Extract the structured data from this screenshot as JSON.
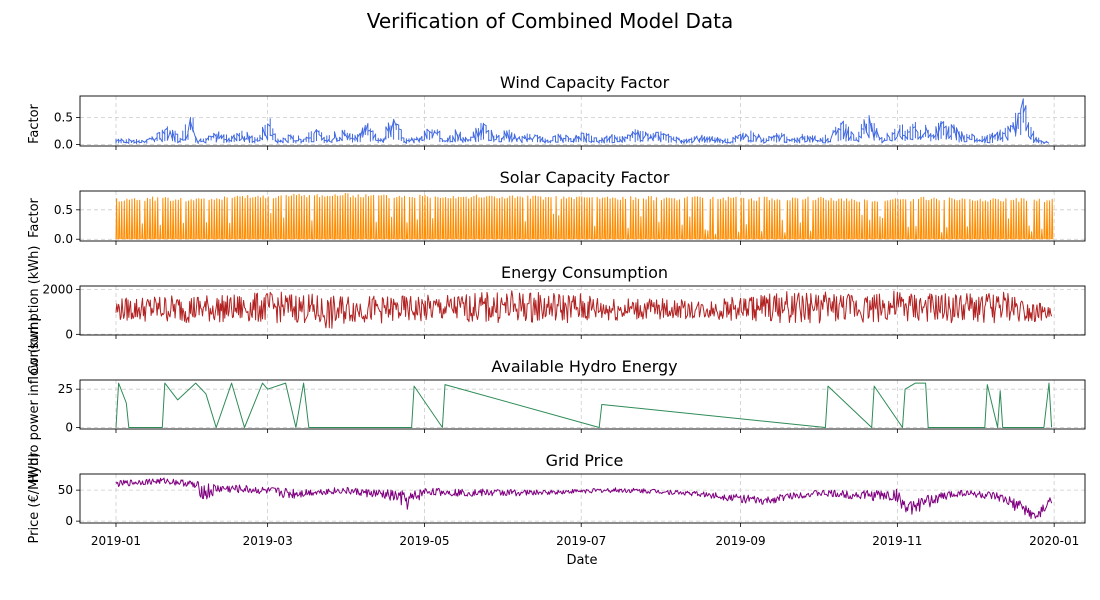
{
  "figure": {
    "title": "Verification of Combined Model Data"
  },
  "chart_data": [
    {
      "type": "line",
      "title": "Wind Capacity Factor",
      "ylabel": "Factor",
      "xlabel": "",
      "color": "#4169e1",
      "ylim": [
        -0.03,
        0.9
      ],
      "yticks": [
        0.0,
        0.5
      ],
      "ytick_labels": [
        "0.0",
        "0.5"
      ],
      "grid": true,
      "x": [
        "2019-01-01",
        "2019-01-06",
        "2019-01-11",
        "2019-01-16",
        "2019-01-21",
        "2019-01-26",
        "2019-01-31",
        "2019-02-02",
        "2019-02-05",
        "2019-02-10",
        "2019-02-15",
        "2019-02-20",
        "2019-02-25",
        "2019-03-02",
        "2019-03-05",
        "2019-03-10",
        "2019-03-15",
        "2019-03-20",
        "2019-03-25",
        "2019-03-30",
        "2019-04-04",
        "2019-04-09",
        "2019-04-14",
        "2019-04-19",
        "2019-04-24",
        "2019-04-29",
        "2019-05-04",
        "2019-05-09",
        "2019-05-14",
        "2019-05-19",
        "2019-05-24",
        "2019-05-29",
        "2019-06-03",
        "2019-06-08",
        "2019-06-13",
        "2019-06-18",
        "2019-06-23",
        "2019-06-28",
        "2019-07-03",
        "2019-07-08",
        "2019-07-13",
        "2019-07-18",
        "2019-07-23",
        "2019-07-28",
        "2019-08-02",
        "2019-08-07",
        "2019-08-12",
        "2019-08-17",
        "2019-08-22",
        "2019-08-27",
        "2019-09-01",
        "2019-09-06",
        "2019-09-11",
        "2019-09-16",
        "2019-09-21",
        "2019-09-26",
        "2019-10-01",
        "2019-10-06",
        "2019-10-11",
        "2019-10-16",
        "2019-10-21",
        "2019-10-26",
        "2019-10-31",
        "2019-11-05",
        "2019-11-10",
        "2019-11-15",
        "2019-11-20",
        "2019-11-25",
        "2019-11-30",
        "2019-12-05",
        "2019-12-10",
        "2019-12-15",
        "2019-12-20",
        "2019-12-22",
        "2019-12-25",
        "2019-12-30"
      ],
      "values": [
        0.1,
        0.12,
        0.08,
        0.15,
        0.35,
        0.2,
        0.6,
        0.1,
        0.12,
        0.25,
        0.15,
        0.3,
        0.1,
        0.55,
        0.1,
        0.2,
        0.15,
        0.3,
        0.15,
        0.35,
        0.2,
        0.4,
        0.1,
        0.55,
        0.1,
        0.15,
        0.35,
        0.2,
        0.3,
        0.1,
        0.5,
        0.2,
        0.3,
        0.15,
        0.25,
        0.1,
        0.2,
        0.15,
        0.25,
        0.1,
        0.2,
        0.15,
        0.3,
        0.2,
        0.25,
        0.15,
        0.1,
        0.2,
        0.15,
        0.1,
        0.2,
        0.3,
        0.1,
        0.25,
        0.1,
        0.2,
        0.15,
        0.2,
        0.45,
        0.2,
        0.6,
        0.15,
        0.35,
        0.4,
        0.45,
        0.3,
        0.55,
        0.3,
        0.2,
        0.15,
        0.25,
        0.4,
        0.85,
        0.6,
        0.15,
        0.05
      ]
    },
    {
      "type": "line",
      "title": "Solar Capacity Factor",
      "ylabel": "Factor",
      "xlabel": "",
      "color": "#ff8c00",
      "ylim": [
        -0.03,
        0.82
      ],
      "yticks": [
        0.0,
        0.5
      ],
      "ytick_labels": [
        "0.0",
        "0.5"
      ],
      "grid": true,
      "x": [
        "2019-01-01",
        "2019-01-15",
        "2019-02-01",
        "2019-02-15",
        "2019-03-01",
        "2019-03-15",
        "2019-04-01",
        "2019-04-15",
        "2019-05-01",
        "2019-05-15",
        "2019-06-01",
        "2019-06-15",
        "2019-07-01",
        "2019-07-15",
        "2019-08-01",
        "2019-08-15",
        "2019-09-01",
        "2019-09-15",
        "2019-10-01",
        "2019-10-15",
        "2019-11-01",
        "2019-11-15",
        "2019-12-01",
        "2019-12-15",
        "2019-12-31"
      ],
      "values": [
        0.7,
        0.72,
        0.7,
        0.74,
        0.76,
        0.78,
        0.78,
        0.76,
        0.77,
        0.76,
        0.75,
        0.74,
        0.74,
        0.73,
        0.73,
        0.72,
        0.72,
        0.72,
        0.72,
        0.7,
        0.7,
        0.72,
        0.7,
        0.7,
        0.68
      ]
    },
    {
      "type": "line",
      "title": "Energy Consumption",
      "ylabel": "Consumption (kWh)",
      "xlabel": "",
      "color": "#b22222",
      "ylim": [
        -30,
        2150
      ],
      "yticks": [
        0,
        2000
      ],
      "ytick_labels": [
        "0",
        "2000"
      ],
      "grid": true,
      "x": [
        "2019-01-01",
        "2019-01-15",
        "2019-02-01",
        "2019-02-15",
        "2019-03-01",
        "2019-03-15",
        "2019-03-26",
        "2019-04-01",
        "2019-04-15",
        "2019-05-01",
        "2019-05-15",
        "2019-06-01",
        "2019-06-15",
        "2019-07-01",
        "2019-07-15",
        "2019-08-01",
        "2019-08-15",
        "2019-09-01",
        "2019-09-15",
        "2019-10-01",
        "2019-10-15",
        "2019-11-01",
        "2019-11-15",
        "2019-12-01",
        "2019-12-15",
        "2019-12-31"
      ],
      "values": [
        1600,
        1750,
        1800,
        1750,
        1900,
        1850,
        1700,
        1800,
        1700,
        1750,
        1800,
        1950,
        1900,
        1850,
        1650,
        1600,
        1500,
        1700,
        1900,
        1900,
        1850,
        1950,
        1800,
        1850,
        1900,
        1200
      ],
      "lows": [
        600,
        550,
        500,
        550,
        520,
        500,
        130,
        520,
        500,
        520,
        550,
        500,
        550,
        500,
        600,
        650,
        700,
        600,
        520,
        500,
        550,
        480,
        520,
        500,
        520,
        600
      ]
    },
    {
      "type": "line",
      "title": "Available Hydro Energy",
      "ylabel": "Hydro power inflow (kwh)",
      "xlabel": "",
      "color": "#2e8b57",
      "ylim": [
        -1,
        31
      ],
      "yticks": [
        0,
        25
      ],
      "ytick_labels": [
        "0",
        "25"
      ],
      "grid": true,
      "x": [
        "2019-01-01",
        "2019-01-02",
        "2019-01-05",
        "2019-01-06",
        "2019-01-19",
        "2019-01-20",
        "2019-01-25",
        "2019-02-01",
        "2019-02-05",
        "2019-02-09",
        "2019-02-15",
        "2019-02-20",
        "2019-02-27",
        "2019-03-01",
        "2019-03-08",
        "2019-03-12",
        "2019-03-15",
        "2019-03-17",
        "2019-04-26",
        "2019-04-27",
        "2019-05-08",
        "2019-05-09",
        "2019-07-08",
        "2019-07-09",
        "2019-10-04",
        "2019-10-05",
        "2019-10-22",
        "2019-10-23",
        "2019-11-03",
        "2019-11-04",
        "2019-11-08",
        "2019-11-12",
        "2019-11-13",
        "2019-12-05",
        "2019-12-06",
        "2019-12-10",
        "2019-12-11",
        "2019-12-12",
        "2019-12-28",
        "2019-12-30",
        "2019-12-31"
      ],
      "values": [
        0,
        29,
        16,
        0,
        0,
        29,
        18,
        29,
        22,
        0,
        29,
        0,
        29,
        25,
        29,
        0,
        29,
        0,
        0,
        27,
        0,
        28,
        0,
        15,
        0,
        27,
        0,
        27,
        0,
        25,
        29,
        29,
        0,
        0,
        28,
        0,
        24,
        0,
        0,
        29,
        0
      ]
    },
    {
      "type": "line",
      "title": "Grid Price",
      "ylabel": "Price (€/MWh)",
      "xlabel": "Date",
      "color": "#800080",
      "ylim": [
        -3,
        76
      ],
      "yticks": [
        0,
        50
      ],
      "ytick_labels": [
        "0",
        "50"
      ],
      "grid": true,
      "x": [
        "2019-01-01",
        "2019-01-10",
        "2019-01-20",
        "2019-01-30",
        "2019-02-05",
        "2019-02-10",
        "2019-02-20",
        "2019-03-01",
        "2019-03-10",
        "2019-03-20",
        "2019-03-30",
        "2019-04-10",
        "2019-04-20",
        "2019-04-25",
        "2019-05-01",
        "2019-05-15",
        "2019-06-01",
        "2019-06-15",
        "2019-07-01",
        "2019-07-15",
        "2019-08-01",
        "2019-08-15",
        "2019-09-01",
        "2019-09-10",
        "2019-09-20",
        "2019-10-01",
        "2019-10-15",
        "2019-11-01",
        "2019-11-05",
        "2019-11-15",
        "2019-11-25",
        "2019-12-01",
        "2019-12-10",
        "2019-12-20",
        "2019-12-25",
        "2019-12-31"
      ],
      "values": [
        65,
        68,
        70,
        66,
        62,
        60,
        58,
        55,
        54,
        52,
        55,
        52,
        50,
        48,
        54,
        52,
        52,
        50,
        52,
        54,
        52,
        48,
        44,
        38,
        46,
        50,
        50,
        52,
        30,
        45,
        52,
        50,
        46,
        32,
        12,
        45
      ],
      "lows": [
        55,
        58,
        60,
        55,
        30,
        45,
        45,
        42,
        35,
        42,
        44,
        38,
        30,
        15,
        42,
        40,
        40,
        42,
        45,
        46,
        44,
        40,
        30,
        25,
        35,
        40,
        35,
        30,
        8,
        25,
        40,
        38,
        30,
        10,
        0,
        20
      ]
    }
  ],
  "x_axis": {
    "type": "date",
    "range": [
      "2018-12-18",
      "2020-01-13"
    ],
    "tick_dates": [
      "2019-01-01",
      "2019-03-01",
      "2019-05-01",
      "2019-07-01",
      "2019-09-01",
      "2019-11-01",
      "2020-01-01"
    ],
    "tick_labels": [
      "2019-01",
      "2019-03",
      "2019-05",
      "2019-07",
      "2019-09",
      "2019-11",
      "2020-01"
    ],
    "label": "Date"
  }
}
